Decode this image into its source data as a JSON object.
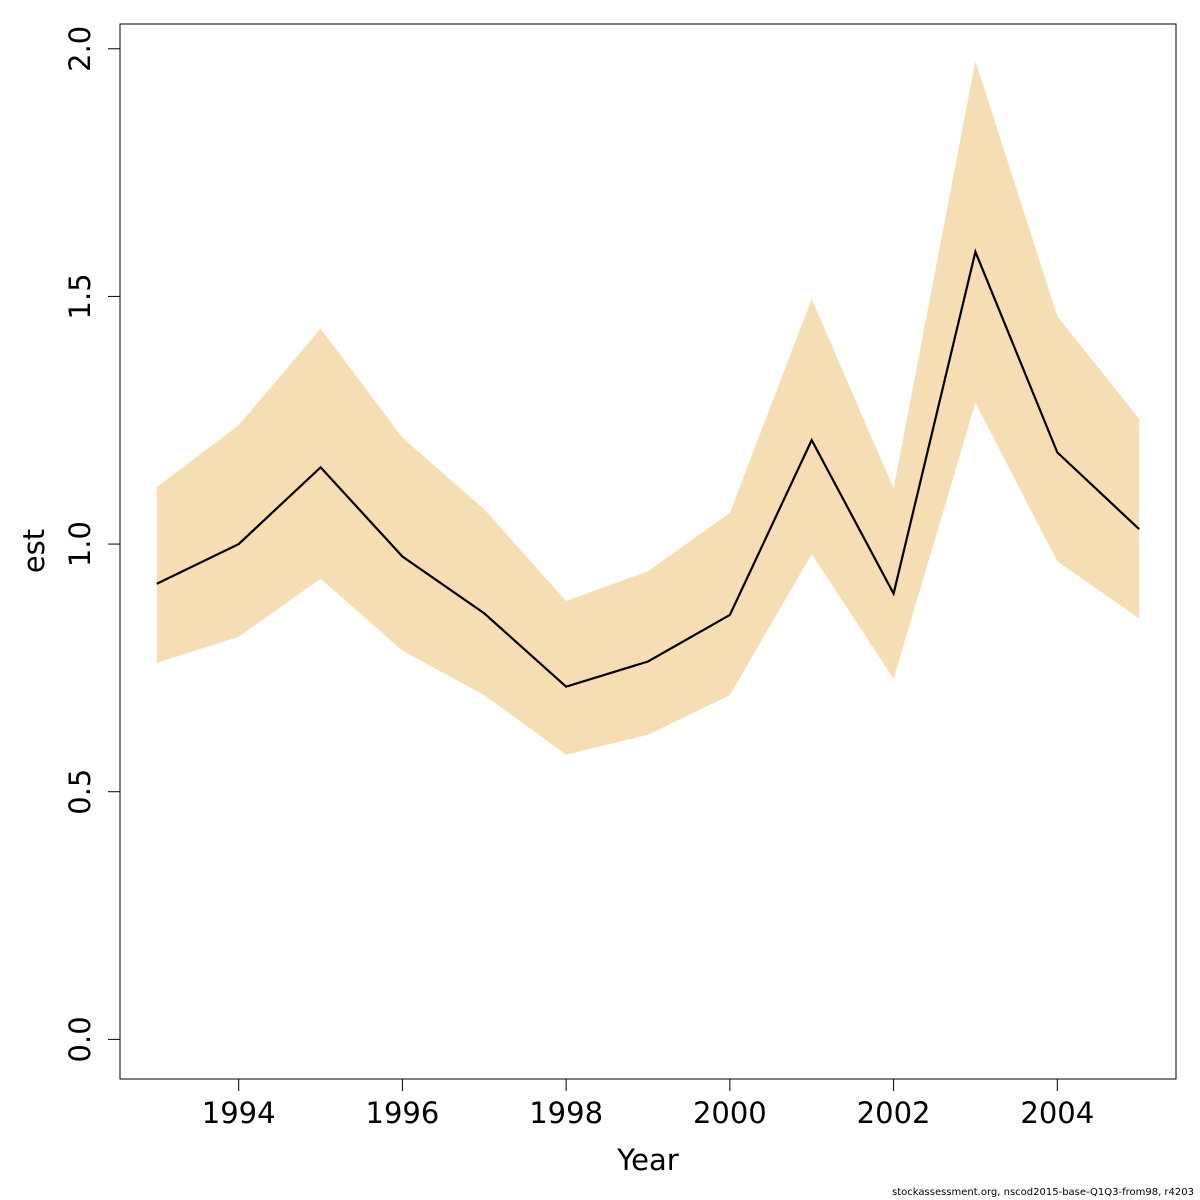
{
  "chart_data": {
    "type": "line",
    "xlabel": "Year",
    "ylabel": "est",
    "xlim": [
      1992.55,
      2005.45
    ],
    "ylim": [
      -0.08,
      2.05
    ],
    "x_ticks": [
      1994,
      1996,
      1998,
      2000,
      2002,
      2004
    ],
    "y_ticks": [
      0.0,
      0.5,
      1.0,
      1.5,
      2.0
    ],
    "y_tick_labels": [
      "0.0",
      "0.5",
      "1.0",
      "1.5",
      "2.0"
    ],
    "grid": false,
    "series": [
      {
        "role": "estimate",
        "color": "#000000",
        "x": [
          1993,
          1994,
          1995,
          1996,
          1997,
          1998,
          1999,
          2000,
          2001,
          2002,
          2003,
          2004,
          2005
        ],
        "y": [
          0.92,
          1.0,
          1.155,
          0.975,
          0.86,
          0.712,
          0.763,
          0.857,
          1.21,
          0.9,
          1.59,
          1.185,
          1.03
        ]
      }
    ],
    "band": {
      "color": "#F5DEB3",
      "x": [
        1993,
        1994,
        1995,
        1996,
        1997,
        1998,
        1999,
        2000,
        2001,
        2002,
        2003,
        2004,
        2005
      ],
      "lower": [
        0.76,
        0.813,
        0.93,
        0.785,
        0.695,
        0.575,
        0.615,
        0.695,
        0.98,
        0.728,
        1.285,
        0.965,
        0.85
      ],
      "upper": [
        1.115,
        1.24,
        1.435,
        1.215,
        1.07,
        0.885,
        0.945,
        1.063,
        1.495,
        1.112,
        1.975,
        1.46,
        1.253
      ]
    }
  },
  "footer": {
    "text": "stockassessment.org, nscod2015-base-Q1Q3-from98, r4203"
  }
}
